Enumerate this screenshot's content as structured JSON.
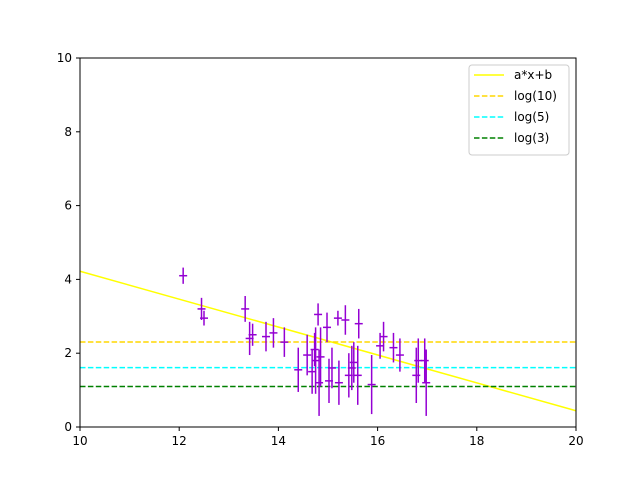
{
  "chart_data": {
    "type": "scatter",
    "title": "",
    "xlabel": "",
    "ylabel": "",
    "xlim": [
      10,
      20
    ],
    "ylim": [
      0,
      10
    ],
    "xticks": [
      10,
      12,
      14,
      16,
      18,
      20
    ],
    "yticks": [
      0,
      2,
      4,
      6,
      8,
      10
    ],
    "grid": false,
    "legend_position": "top-right",
    "points": {
      "color": "#9400d3",
      "data": [
        {
          "x": 12.08,
          "y": 4.1,
          "err": 0.22
        },
        {
          "x": 12.45,
          "y": 3.2,
          "err": 0.3
        },
        {
          "x": 12.5,
          "y": 2.95,
          "err": 0.2
        },
        {
          "x": 13.33,
          "y": 3.2,
          "err": 0.35
        },
        {
          "x": 13.42,
          "y": 2.4,
          "err": 0.45
        },
        {
          "x": 13.48,
          "y": 2.5,
          "err": 0.3
        },
        {
          "x": 13.75,
          "y": 2.45,
          "err": 0.4
        },
        {
          "x": 13.9,
          "y": 2.55,
          "err": 0.4
        },
        {
          "x": 14.12,
          "y": 2.3,
          "err": 0.4
        },
        {
          "x": 14.4,
          "y": 1.55,
          "err": 0.6
        },
        {
          "x": 14.58,
          "y": 1.95,
          "err": 0.55
        },
        {
          "x": 14.68,
          "y": 1.5,
          "err": 0.6
        },
        {
          "x": 14.73,
          "y": 2.1,
          "err": 0.45
        },
        {
          "x": 14.75,
          "y": 1.8,
          "err": 0.9
        },
        {
          "x": 14.8,
          "y": 3.05,
          "err": 0.3
        },
        {
          "x": 14.82,
          "y": 1.2,
          "err": 0.9
        },
        {
          "x": 14.85,
          "y": 1.9,
          "err": 0.8
        },
        {
          "x": 14.98,
          "y": 2.7,
          "err": 0.4
        },
        {
          "x": 15.02,
          "y": 1.25,
          "err": 0.6
        },
        {
          "x": 15.08,
          "y": 1.6,
          "err": 0.55
        },
        {
          "x": 15.2,
          "y": 2.95,
          "err": 0.2
        },
        {
          "x": 15.22,
          "y": 1.2,
          "err": 0.6
        },
        {
          "x": 15.35,
          "y": 2.9,
          "err": 0.4
        },
        {
          "x": 15.42,
          "y": 1.4,
          "err": 0.6
        },
        {
          "x": 15.48,
          "y": 1.6,
          "err": 0.6
        },
        {
          "x": 15.52,
          "y": 1.75,
          "err": 0.55
        },
        {
          "x": 15.6,
          "y": 1.4,
          "err": 0.8
        },
        {
          "x": 15.62,
          "y": 2.8,
          "err": 0.4
        },
        {
          "x": 15.88,
          "y": 1.15,
          "err": 0.8
        },
        {
          "x": 16.05,
          "y": 2.2,
          "err": 0.35
        },
        {
          "x": 16.12,
          "y": 2.45,
          "err": 0.4
        },
        {
          "x": 16.32,
          "y": 2.15,
          "err": 0.4
        },
        {
          "x": 16.45,
          "y": 1.95,
          "err": 0.45
        },
        {
          "x": 16.78,
          "y": 1.4,
          "err": 0.75
        },
        {
          "x": 16.82,
          "y": 1.8,
          "err": 0.6
        },
        {
          "x": 16.95,
          "y": 1.8,
          "err": 0.6
        },
        {
          "x": 16.98,
          "y": 1.2,
          "err": 0.9
        }
      ]
    },
    "series": [
      {
        "name": "a*x+b",
        "kind": "line",
        "style": "solid",
        "color": "#ffff00",
        "x": [
          10,
          20
        ],
        "y": [
          4.22,
          0.44
        ]
      },
      {
        "name": "log(10)",
        "kind": "hline",
        "style": "dashed",
        "color": "#ffd700",
        "y": 2.3026
      },
      {
        "name": "log(5)",
        "kind": "hline",
        "style": "dashed",
        "color": "#00ffff",
        "y": 1.6094
      },
      {
        "name": "log(3)",
        "kind": "hline",
        "style": "dashed",
        "color": "#008000",
        "y": 1.0986
      }
    ]
  }
}
